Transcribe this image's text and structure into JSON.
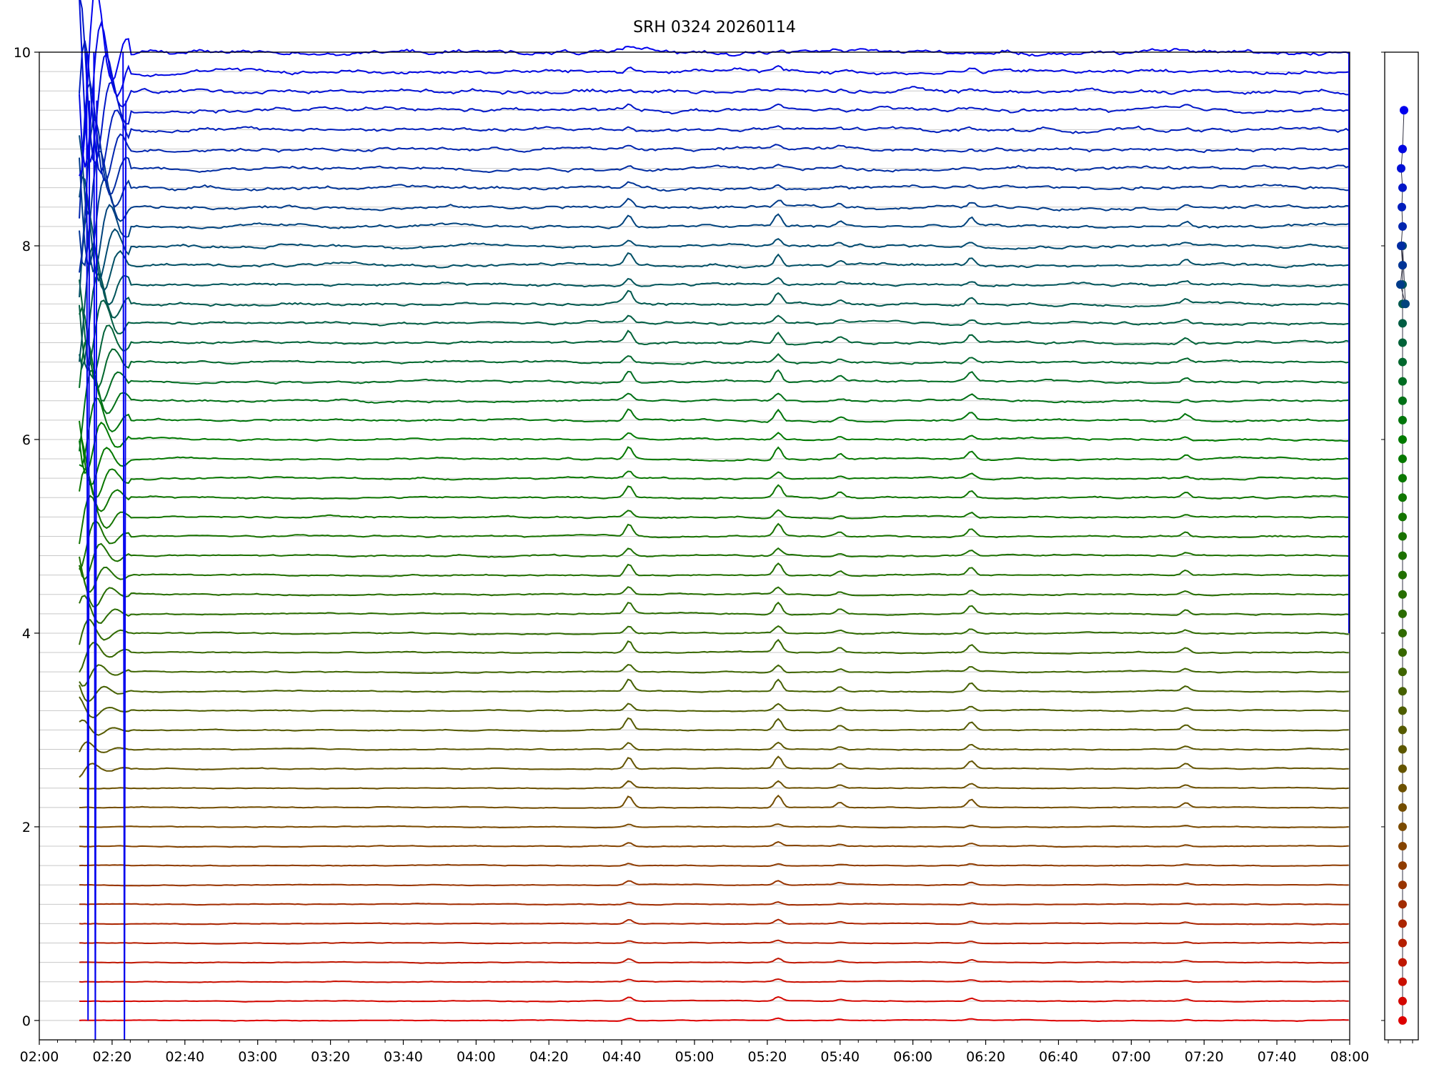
{
  "chart_data": {
    "type": "line",
    "title": "SRH 0324 20260114",
    "xlabel": "",
    "ylabel": "",
    "x_range": [
      "02:00",
      "08:00"
    ],
    "x_ticks": [
      "02:00",
      "02:20",
      "02:40",
      "03:00",
      "03:20",
      "03:40",
      "04:00",
      "04:20",
      "04:40",
      "05:00",
      "05:20",
      "05:40",
      "06:00",
      "06:20",
      "06:40",
      "07:00",
      "07:20",
      "07:40",
      "08:00"
    ],
    "ylim": [
      -0.2,
      10
    ],
    "y_ticks": [
      0,
      2,
      4,
      6,
      8,
      10
    ],
    "grid": "horizontal at each trace baseline",
    "series_count": 51,
    "series_offset_step": 0.2,
    "color_gradient": [
      "#dd0000",
      "#7a4a00",
      "#2f6a00",
      "#007a00",
      "#004a70",
      "#0000ee"
    ],
    "data_start": "02:11",
    "data_end": "08:00",
    "features": [
      {
        "time": "02:11-02:25",
        "description_value": "large initial transients on upper traces"
      },
      {
        "time": "04:42",
        "value": 0.12
      },
      {
        "time": "05:23",
        "value": 0.12
      },
      {
        "time": "05:40",
        "value": 0.05
      },
      {
        "time": "06:16",
        "value": 0.08
      },
      {
        "time": "07:15",
        "value": 0.05
      }
    ],
    "side_panel": {
      "type": "scatter",
      "x_values": [
        0,
        0,
        0,
        0,
        0,
        0,
        0,
        0,
        0,
        0,
        0,
        0,
        0,
        0,
        0,
        0,
        0,
        0,
        0,
        0,
        0,
        0,
        0,
        0,
        0,
        0,
        0,
        0,
        0,
        0,
        0,
        0,
        0,
        0,
        0,
        0,
        0,
        0,
        0,
        0,
        0,
        0.4,
        -0.3,
        0,
        -0.2,
        0,
        -0.1,
        0,
        -0.2,
        0,
        0.2
      ],
      "y_values": [
        0,
        0.2,
        0.4,
        0.6,
        0.8,
        1.0,
        1.2,
        1.4,
        1.6,
        1.8,
        2.0,
        2.2,
        2.4,
        2.6,
        2.8,
        3.0,
        3.2,
        3.4,
        3.6,
        3.8,
        4.0,
        4.2,
        4.4,
        4.6,
        4.8,
        5.0,
        5.2,
        5.4,
        5.6,
        5.8,
        6.0,
        6.2,
        6.4,
        6.6,
        6.8,
        7.0,
        7.2,
        7.4,
        7.6,
        7.8,
        8.0,
        7.4,
        7.6,
        7.8,
        8.0,
        8.2,
        8.4,
        8.6,
        8.8,
        9.0,
        9.4
      ]
    }
  }
}
